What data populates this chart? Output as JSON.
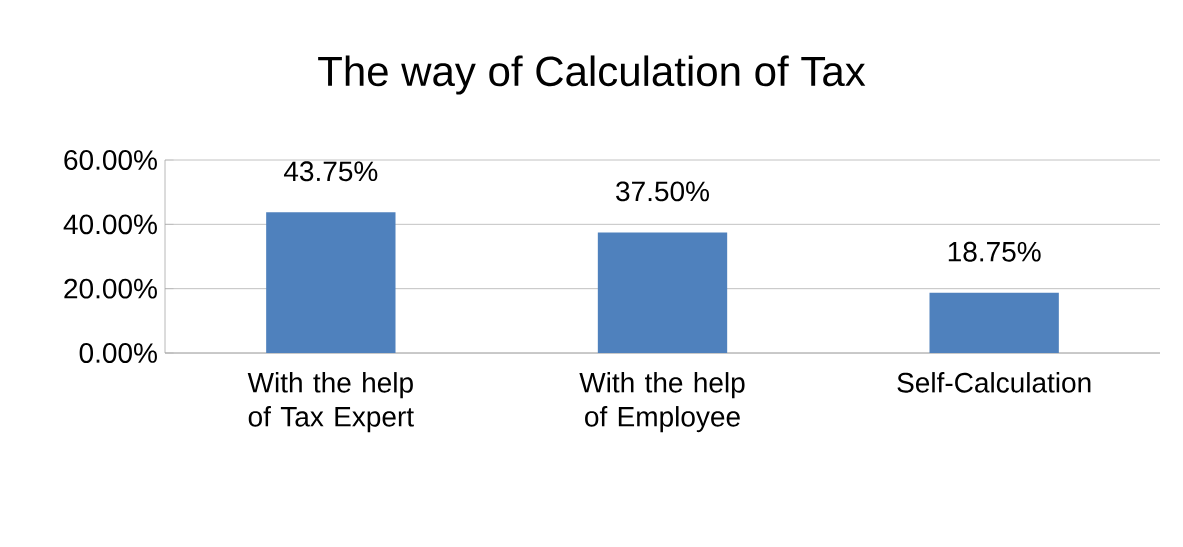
{
  "chart_data": {
    "type": "bar",
    "title": "The way of Calculation of Tax",
    "categories": [
      "With the help of Tax Expert",
      "With the help of Employee",
      "Self-Calculation"
    ],
    "values": [
      43.75,
      37.5,
      18.75
    ],
    "value_labels": [
      "43.75%",
      "37.50%",
      "18.75%"
    ],
    "color": "#4f81bd",
    "ylim": [
      0,
      60
    ],
    "yticks": [
      {
        "value": 0,
        "label": "0.00%"
      },
      {
        "value": 20,
        "label": "20.00%"
      },
      {
        "value": 40,
        "label": "40.00%"
      },
      {
        "value": 60,
        "label": "60.00%"
      }
    ],
    "grid": "y"
  }
}
